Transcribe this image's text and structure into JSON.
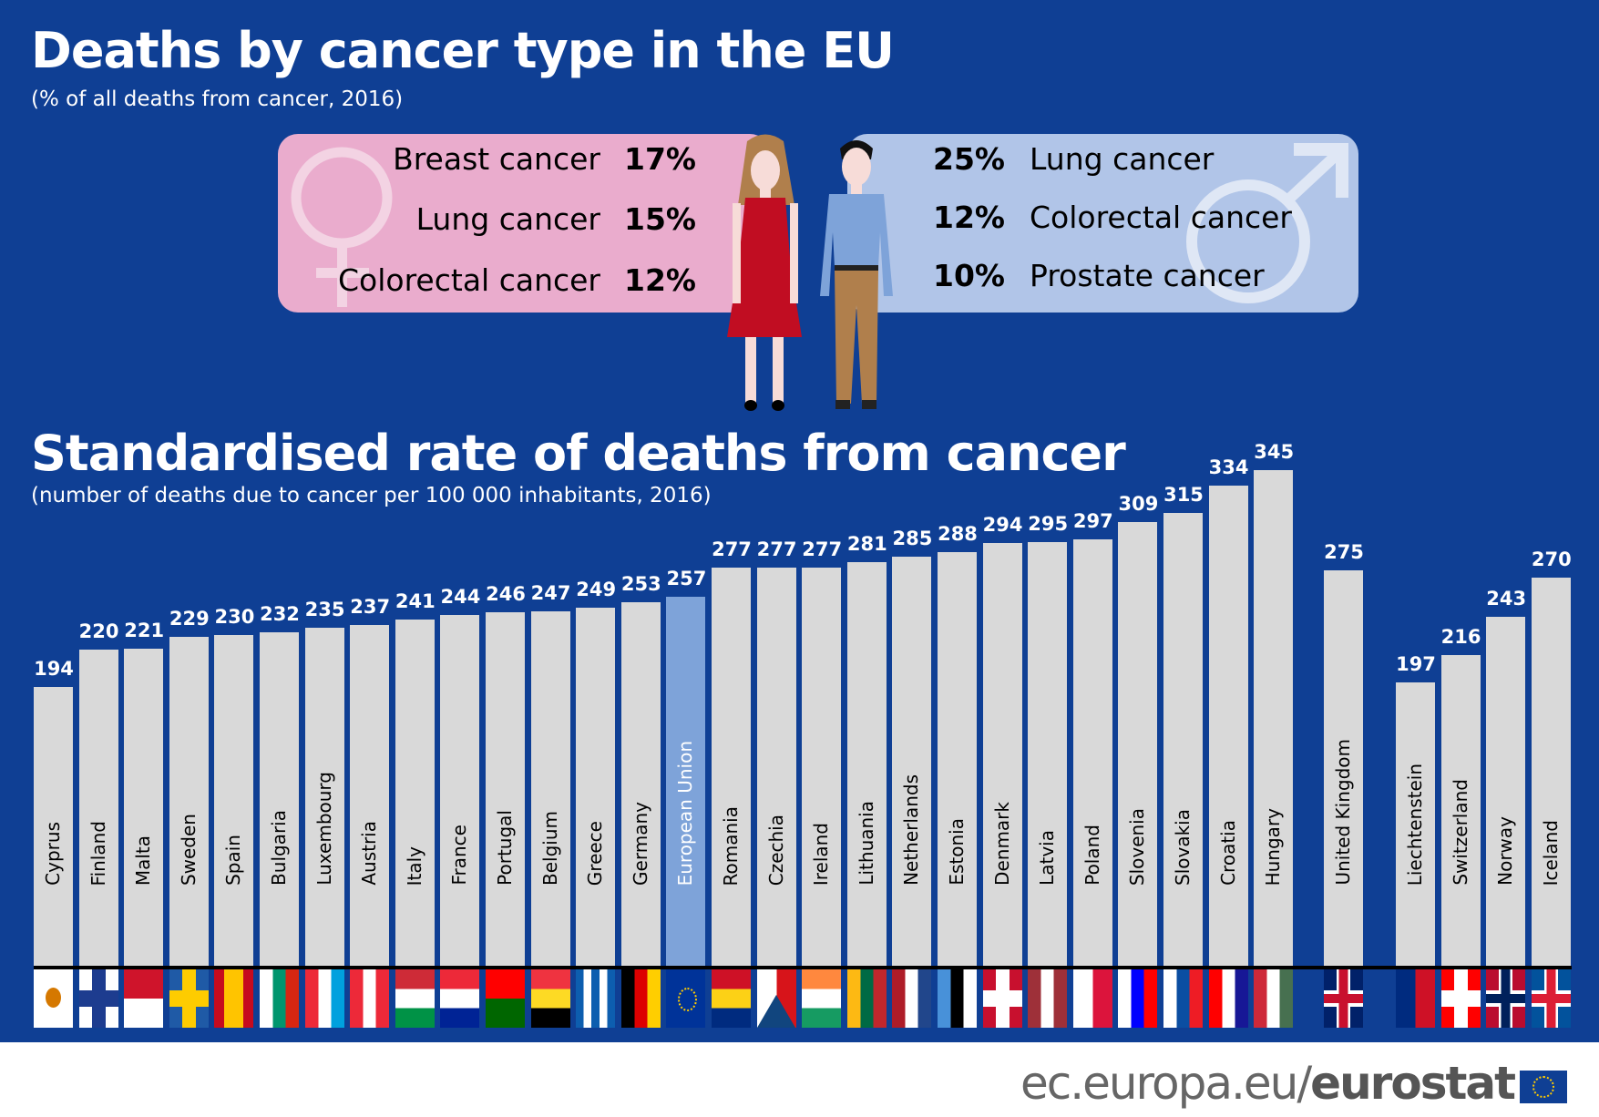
{
  "header": {
    "title": "Deaths by cancer type in the EU",
    "subtitle": "(% of all deaths from cancer, 2016)"
  },
  "women": {
    "icon": "female-symbol-icon",
    "color": "#eaaccd",
    "items": [
      {
        "label": "Breast cancer",
        "pct": "17%"
      },
      {
        "label": "Lung cancer",
        "pct": "15%"
      },
      {
        "label": "Colorectal cancer",
        "pct": "12%"
      }
    ]
  },
  "men": {
    "icon": "male-symbol-icon",
    "color": "#b1c5e8",
    "items": [
      {
        "label": "Lung cancer",
        "pct": "25%"
      },
      {
        "label": "Colorectal cancer",
        "pct": "12%"
      },
      {
        "label": "Prostate cancer",
        "pct": "10%"
      }
    ]
  },
  "chart_data": {
    "type": "bar",
    "title": "Standardised rate of deaths from cancer",
    "subtitle": "(number of deaths due to cancer per 100 000 inhabitants, 2016)",
    "ylim": [
      0,
      345
    ],
    "grid": false,
    "bar_color": "#d9d9d9",
    "highlight_color": "#7ea3d9",
    "highlight": "European Union",
    "categories": [
      "Cyprus",
      "Finland",
      "Malta",
      "Sweden",
      "Spain",
      "Bulgaria",
      "Luxembourg",
      "Austria",
      "Italy",
      "France",
      "Portugal",
      "Belgium",
      "Greece",
      "Germany",
      "European Union",
      "Romania",
      "Czechia",
      "Ireland",
      "Lithuania",
      "Netherlands",
      "Estonia",
      "Denmark",
      "Latvia",
      "Poland",
      "Slovenia",
      "Slovakia",
      "Croatia",
      "Hungary",
      "United Kingdom",
      "Liechtenstein",
      "Switzerland",
      "Norway",
      "Iceland"
    ],
    "values": [
      194,
      220,
      221,
      229,
      230,
      232,
      235,
      237,
      241,
      244,
      246,
      247,
      249,
      253,
      257,
      277,
      277,
      277,
      281,
      285,
      288,
      294,
      295,
      297,
      309,
      315,
      334,
      345,
      275,
      197,
      216,
      243,
      270
    ],
    "groups": [
      28,
      1,
      4
    ]
  },
  "flags": [
    {
      "h": [
        "#ffffff"
      ],
      "emblem": "#d57800"
    },
    {
      "cross": "#1d3c8f",
      "bg": "#ffffff"
    },
    {
      "h": [
        "#cf142b",
        "#ffffff"
      ]
    },
    {
      "cross": "#fecc00",
      "bg": "#1f5aa6"
    },
    {
      "v": [
        "#c60b1e",
        "#ffc400",
        "#ffc400",
        "#c60b1e"
      ]
    },
    {
      "v": [
        "#ffffff",
        "#00966e",
        "#d62612"
      ]
    },
    {
      "v": [
        "#ed2939",
        "#ffffff",
        "#00a1de"
      ]
    },
    {
      "v": [
        "#ed2939",
        "#ffffff",
        "#ed2939"
      ]
    },
    {
      "h": [
        "#ce2b37",
        "#ffffff",
        "#009246"
      ]
    },
    {
      "h": [
        "#ed2939",
        "#ffffff",
        "#002395"
      ]
    },
    {
      "h": [
        "#ff0000",
        "#006600"
      ]
    },
    {
      "h": [
        "#ef3340",
        "#fdda24",
        "#000000"
      ]
    },
    {
      "v": [
        "#0d5eaf",
        "#ffffff",
        "#0d5eaf",
        "#ffffff",
        "#0d5eaf"
      ]
    },
    {
      "v": [
        "#000000",
        "#dd0000",
        "#ffce00"
      ]
    },
    {
      "h": [
        "#003399"
      ],
      "emblem": "#ffcc00"
    },
    {
      "h": [
        "#ce1126",
        "#fcd116",
        "#002b7f"
      ]
    },
    {
      "v": [
        "#ffffff",
        "#d7141a"
      ],
      "tri": "#11457e"
    },
    {
      "h": [
        "#ff883e",
        "#ffffff",
        "#169b62"
      ]
    },
    {
      "v": [
        "#fdb913",
        "#006a44",
        "#c1272d"
      ]
    },
    {
      "v": [
        "#ae1c28",
        "#ffffff",
        "#21468b"
      ]
    },
    {
      "v": [
        "#4891d9",
        "#000000",
        "#ffffff"
      ]
    },
    {
      "cross": "#ffffff",
      "bg": "#c8102e"
    },
    {
      "v": [
        "#9e3039",
        "#ffffff",
        "#9e3039"
      ]
    },
    {
      "v": [
        "#ffffff",
        "#dc143c"
      ]
    },
    {
      "v": [
        "#ffffff",
        "#0000ff",
        "#ff0000"
      ]
    },
    {
      "v": [
        "#ffffff",
        "#0b4ea2",
        "#ee1c25"
      ]
    },
    {
      "v": [
        "#ff0000",
        "#ffffff",
        "#171796"
      ]
    },
    {
      "v": [
        "#ce2939",
        "#ffffff",
        "#477050"
      ]
    },
    {
      "cross": "#c8102e",
      "bg": "#012169",
      "outline": "#ffffff"
    },
    {
      "v": [
        "#002b7f",
        "#ce1126"
      ]
    },
    {
      "cross": "#ffffff",
      "bg": "#ff0000"
    },
    {
      "cross": "#00205b",
      "bg": "#ba0c2f",
      "outline": "#ffffff"
    },
    {
      "cross": "#dc1e35",
      "bg": "#02529c",
      "outline": "#ffffff"
    }
  ],
  "footer": {
    "domain": "ec.europa.eu/",
    "brand": "eurostat"
  }
}
